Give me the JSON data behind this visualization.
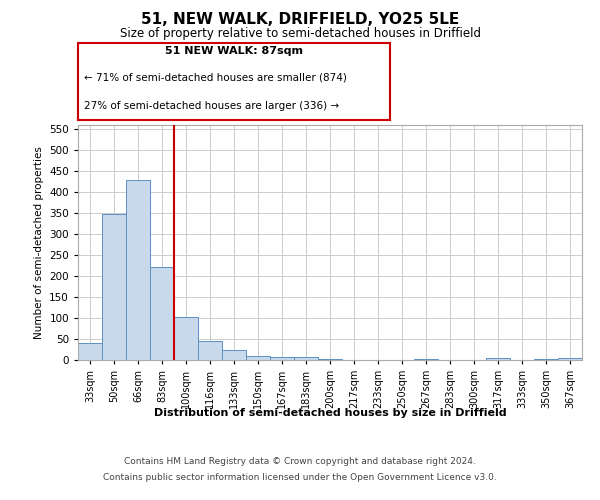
{
  "title": "51, NEW WALK, DRIFFIELD, YO25 5LE",
  "subtitle": "Size of property relative to semi-detached houses in Driffield",
  "xlabel": "Distribution of semi-detached houses by size in Driffield",
  "ylabel": "Number of semi-detached properties",
  "property_label": "51 NEW WALK: 87sqm",
  "pct_smaller": 71,
  "count_smaller": 874,
  "pct_larger": 27,
  "count_larger": 336,
  "bin_labels": [
    "33sqm",
    "50sqm",
    "66sqm",
    "83sqm",
    "100sqm",
    "116sqm",
    "133sqm",
    "150sqm",
    "167sqm",
    "183sqm",
    "200sqm",
    "217sqm",
    "233sqm",
    "250sqm",
    "267sqm",
    "283sqm",
    "300sqm",
    "317sqm",
    "333sqm",
    "350sqm",
    "367sqm"
  ],
  "bin_values": [
    40,
    349,
    430,
    221,
    102,
    45,
    25,
    10,
    8,
    6,
    2,
    1,
    1,
    0,
    3,
    0,
    0,
    4,
    0,
    3,
    4
  ],
  "bar_color": "#c9d9ec",
  "bar_edge_color": "#5a8fc3",
  "vline_x_index": 3.5,
  "vline_color": "#cc0000",
  "box_color": "#cc0000",
  "ylim": [
    0,
    560
  ],
  "yticks": [
    0,
    50,
    100,
    150,
    200,
    250,
    300,
    350,
    400,
    450,
    500,
    550
  ],
  "footer_line1": "Contains HM Land Registry data © Crown copyright and database right 2024.",
  "footer_line2": "Contains public sector information licensed under the Open Government Licence v3.0.",
  "background_color": "#ffffff",
  "grid_color": "#cccccc"
}
